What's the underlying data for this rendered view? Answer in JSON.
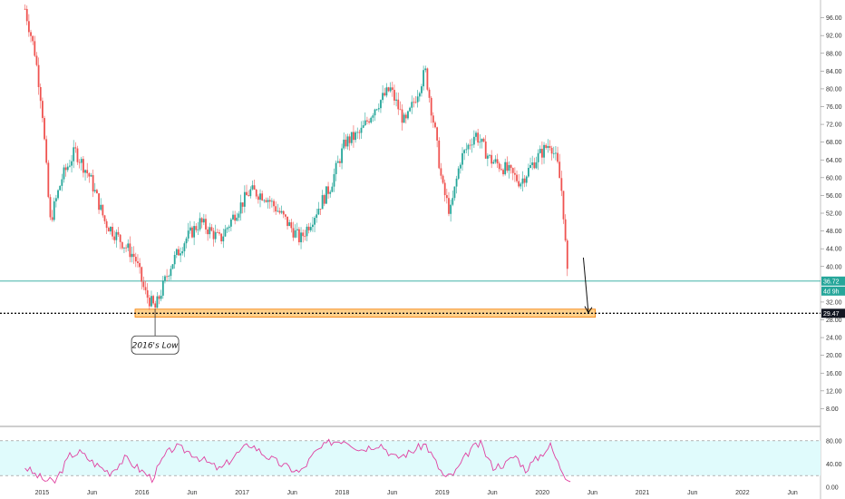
{
  "chart_data": [
    {
      "type": "candlestick",
      "title": "",
      "xlabel": "",
      "ylabel": "",
      "ylim": [
        4,
        100
      ],
      "y_ticks": [
        "96.00",
        "92.00",
        "88.00",
        "84.00",
        "80.00",
        "76.00",
        "72.00",
        "68.00",
        "64.00",
        "60.00",
        "56.00",
        "52.00",
        "48.00",
        "44.00",
        "40.00",
        "32.00",
        "28.00",
        "24.00",
        "20.00",
        "16.00",
        "12.00",
        "8.00"
      ],
      "x_ticks": [
        "Jun",
        "2015",
        "Jun",
        "2016",
        "Jun",
        "2017",
        "Jun",
        "2018",
        "Jun",
        "2019",
        "Jun",
        "2020",
        "Jun",
        "2021",
        "Jun",
        "2022",
        "Jun"
      ],
      "colors": {
        "up": "#26a69a",
        "down": "#ef5350",
        "last_line": "#26a69a",
        "rsi": "#e040a0",
        "rsi_band": "#e0fbfc",
        "zone_fill": "#ffcc80",
        "zone_stroke": "#f57c00"
      },
      "price_path": [
        {
          "x": 2014.75,
          "y": 98.0
        },
        {
          "x": 2014.85,
          "y": 88.0
        },
        {
          "x": 2014.92,
          "y": 76.0
        },
        {
          "x": 2015.0,
          "y": 50.0
        },
        {
          "x": 2015.12,
          "y": 60.0
        },
        {
          "x": 2015.25,
          "y": 66.0
        },
        {
          "x": 2015.4,
          "y": 60.0
        },
        {
          "x": 2015.55,
          "y": 50.0
        },
        {
          "x": 2015.7,
          "y": 46.0
        },
        {
          "x": 2015.85,
          "y": 42.0
        },
        {
          "x": 2015.95,
          "y": 34.0
        },
        {
          "x": 2016.05,
          "y": 30.5
        },
        {
          "x": 2016.2,
          "y": 40.0
        },
        {
          "x": 2016.35,
          "y": 46.0
        },
        {
          "x": 2016.5,
          "y": 50.0
        },
        {
          "x": 2016.7,
          "y": 46.0
        },
        {
          "x": 2016.85,
          "y": 52.0
        },
        {
          "x": 2017.0,
          "y": 57.0
        },
        {
          "x": 2017.15,
          "y": 56.0
        },
        {
          "x": 2017.3,
          "y": 52.0
        },
        {
          "x": 2017.5,
          "y": 46.0
        },
        {
          "x": 2017.65,
          "y": 52.0
        },
        {
          "x": 2017.8,
          "y": 58.0
        },
        {
          "x": 2017.95,
          "y": 68.0
        },
        {
          "x": 2018.1,
          "y": 70.0
        },
        {
          "x": 2018.25,
          "y": 76.0
        },
        {
          "x": 2018.4,
          "y": 80.0
        },
        {
          "x": 2018.55,
          "y": 72.0
        },
        {
          "x": 2018.75,
          "y": 84.0
        },
        {
          "x": 2018.85,
          "y": 70.0
        },
        {
          "x": 2018.92,
          "y": 58.0
        },
        {
          "x": 2019.0,
          "y": 52.0
        },
        {
          "x": 2019.1,
          "y": 64.0
        },
        {
          "x": 2019.25,
          "y": 70.0
        },
        {
          "x": 2019.4,
          "y": 64.0
        },
        {
          "x": 2019.55,
          "y": 62.0
        },
        {
          "x": 2019.7,
          "y": 59.0
        },
        {
          "x": 2019.85,
          "y": 64.0
        },
        {
          "x": 2020.0,
          "y": 68.0
        },
        {
          "x": 2020.07,
          "y": 63.0
        },
        {
          "x": 2020.12,
          "y": 56.0
        },
        {
          "x": 2020.17,
          "y": 38.0
        }
      ],
      "rsi_ylim": [
        0,
        100
      ],
      "rsi_ticks": [
        "80.00",
        "40.00",
        "0.00"
      ],
      "rsi_path": [
        {
          "x": 2014.75,
          "y": 35
        },
        {
          "x": 2014.85,
          "y": 22
        },
        {
          "x": 2014.95,
          "y": 12
        },
        {
          "x": 2015.05,
          "y": 9
        },
        {
          "x": 2015.2,
          "y": 55
        },
        {
          "x": 2015.3,
          "y": 60
        },
        {
          "x": 2015.45,
          "y": 40
        },
        {
          "x": 2015.6,
          "y": 25
        },
        {
          "x": 2015.75,
          "y": 50
        },
        {
          "x": 2015.9,
          "y": 30
        },
        {
          "x": 2016.02,
          "y": 15
        },
        {
          "x": 2016.15,
          "y": 55
        },
        {
          "x": 2016.25,
          "y": 70
        },
        {
          "x": 2016.4,
          "y": 60
        },
        {
          "x": 2016.55,
          "y": 45
        },
        {
          "x": 2016.7,
          "y": 30
        },
        {
          "x": 2016.85,
          "y": 55
        },
        {
          "x": 2017.0,
          "y": 75
        },
        {
          "x": 2017.15,
          "y": 55
        },
        {
          "x": 2017.3,
          "y": 40
        },
        {
          "x": 2017.5,
          "y": 25
        },
        {
          "x": 2017.65,
          "y": 60
        },
        {
          "x": 2017.8,
          "y": 78
        },
        {
          "x": 2017.95,
          "y": 82
        },
        {
          "x": 2018.1,
          "y": 65
        },
        {
          "x": 2018.3,
          "y": 75
        },
        {
          "x": 2018.45,
          "y": 50
        },
        {
          "x": 2018.6,
          "y": 60
        },
        {
          "x": 2018.75,
          "y": 75
        },
        {
          "x": 2018.88,
          "y": 35
        },
        {
          "x": 2018.95,
          "y": 15
        },
        {
          "x": 2019.05,
          "y": 25
        },
        {
          "x": 2019.2,
          "y": 65
        },
        {
          "x": 2019.3,
          "y": 75
        },
        {
          "x": 2019.42,
          "y": 35
        },
        {
          "x": 2019.55,
          "y": 40
        },
        {
          "x": 2019.65,
          "y": 55
        },
        {
          "x": 2019.75,
          "y": 30
        },
        {
          "x": 2019.9,
          "y": 55
        },
        {
          "x": 2020.0,
          "y": 72
        },
        {
          "x": 2020.08,
          "y": 40
        },
        {
          "x": 2020.15,
          "y": 20
        },
        {
          "x": 2020.2,
          "y": 15
        }
      ],
      "horizontal_lines": [
        {
          "y": 36.72,
          "style": "solid"
        },
        {
          "y": 29.47,
          "style": "dotted"
        }
      ],
      "support_zone": {
        "x0": 2015.85,
        "x1": 2020.45,
        "y0": 28.6,
        "y1": 30.4
      },
      "last_price_badge": {
        "value": "36.72",
        "countdown": "4d 9h"
      },
      "level_badge": {
        "value": "29.47"
      },
      "callout": {
        "text": "2016's Low",
        "x": 2016.05,
        "y": 30.5
      },
      "arrow": {
        "x0": 2020.33,
        "y0": 42.0,
        "x1": 2020.38,
        "y1": 29.6
      }
    }
  ]
}
